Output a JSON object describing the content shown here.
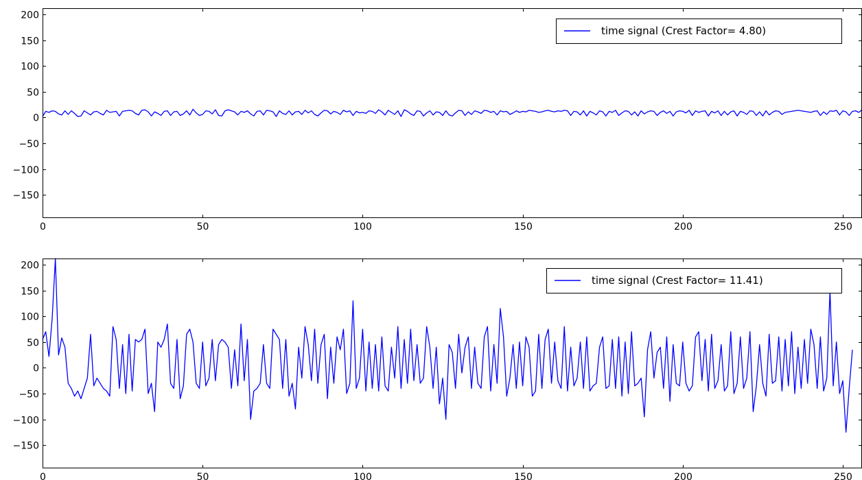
{
  "chart_data": [
    {
      "type": "line",
      "xlim": [
        0,
        256
      ],
      "ylim": [
        -195,
        212
      ],
      "xticks": [
        0,
        50,
        100,
        150,
        200,
        250
      ],
      "yticks": [
        -150,
        -100,
        -50,
        0,
        50,
        100,
        150,
        200
      ],
      "legend_position": "top-right",
      "grid": false,
      "series": [
        {
          "name": "time signal (Crest Factor= 4.80)",
          "color": "#0000ff",
          "values": [
            2,
            12,
            10,
            13,
            12,
            7,
            5,
            13,
            6,
            13,
            8,
            2,
            3,
            13,
            9,
            5,
            11,
            12,
            8,
            5,
            14,
            10,
            11,
            12,
            3,
            12,
            13,
            14,
            13,
            8,
            5,
            14,
            15,
            11,
            3,
            11,
            8,
            4,
            12,
            13,
            4,
            11,
            12,
            4,
            7,
            13,
            5,
            16,
            9,
            4,
            6,
            13,
            12,
            7,
            15,
            4,
            3,
            13,
            15,
            13,
            11,
            5,
            12,
            10,
            13,
            7,
            3,
            12,
            13,
            5,
            14,
            13,
            11,
            2,
            13,
            8,
            6,
            13,
            5,
            11,
            12,
            6,
            14,
            9,
            13,
            6,
            3,
            9,
            14,
            13,
            7,
            12,
            10,
            6,
            14,
            11,
            13,
            4,
            12,
            9,
            10,
            8,
            13,
            12,
            8,
            15,
            11,
            5,
            14,
            10,
            6,
            13,
            2,
            15,
            12,
            7,
            4,
            13,
            12,
            3,
            9,
            13,
            5,
            11,
            10,
            4,
            13,
            5,
            3,
            9,
            14,
            13,
            4,
            11,
            6,
            13,
            11,
            8,
            14,
            13,
            10,
            12,
            5,
            13,
            11,
            12,
            6,
            9,
            13,
            10,
            12,
            11,
            14,
            13,
            12,
            10,
            11,
            13,
            14,
            12,
            11,
            13,
            12,
            14,
            13,
            4,
            12,
            11,
            5,
            13,
            3,
            12,
            9,
            5,
            13,
            11,
            3,
            12,
            10,
            14,
            4,
            9,
            13,
            12,
            5,
            11,
            3,
            13,
            7,
            11,
            13,
            12,
            4,
            10,
            13,
            8,
            12,
            3,
            11,
            13,
            12,
            9,
            14,
            4,
            13,
            10,
            12,
            13,
            3,
            12,
            9,
            13,
            4,
            12,
            5,
            11,
            13,
            3,
            12,
            10,
            6,
            13,
            12,
            4,
            11,
            3,
            13,
            5,
            10,
            13,
            12,
            6,
            10,
            11,
            12,
            13,
            14,
            13,
            12,
            11,
            10,
            12,
            13,
            4,
            11,
            6,
            13,
            12,
            14,
            5,
            13,
            11,
            4,
            12,
            13,
            10,
            15,
            12,
            4,
            9,
            13,
            12,
            11,
            10,
            6
          ]
        }
      ]
    },
    {
      "type": "line",
      "xlim": [
        0,
        256
      ],
      "ylim": [
        -195,
        212
      ],
      "xticks": [
        0,
        50,
        100,
        150,
        200,
        250
      ],
      "yticks": [
        -150,
        -100,
        -50,
        0,
        50,
        100,
        150,
        200
      ],
      "legend_position": "top-right",
      "grid": false,
      "series": [
        {
          "name": "time signal (Crest Factor= 11.41)",
          "color": "#0000ff",
          "values": [
            55,
            70,
            22,
            95,
            212,
            25,
            58,
            40,
            -30,
            -40,
            -55,
            -45,
            -60,
            -40,
            -20,
            65,
            -35,
            -20,
            -30,
            -40,
            -45,
            -55,
            80,
            55,
            -40,
            45,
            -50,
            65,
            -45,
            55,
            50,
            55,
            75,
            -50,
            -30,
            -85,
            50,
            40,
            55,
            85,
            -30,
            -40,
            55,
            -60,
            -35,
            65,
            75,
            50,
            -30,
            -40,
            50,
            -35,
            -20,
            55,
            -25,
            45,
            55,
            50,
            40,
            -40,
            35,
            -35,
            85,
            -25,
            55,
            -100,
            -45,
            -40,
            -30,
            45,
            -30,
            -40,
            75,
            65,
            55,
            -40,
            55,
            -55,
            -30,
            -80,
            40,
            -20,
            80,
            45,
            -25,
            75,
            -30,
            45,
            65,
            -60,
            40,
            -30,
            60,
            35,
            75,
            -50,
            -30,
            130,
            -40,
            -20,
            75,
            -45,
            50,
            -40,
            45,
            -45,
            60,
            -35,
            -45,
            40,
            -20,
            80,
            -40,
            55,
            -30,
            75,
            -25,
            45,
            -30,
            -20,
            80,
            40,
            -40,
            40,
            -70,
            -20,
            -100,
            45,
            30,
            -40,
            65,
            -10,
            40,
            60,
            -40,
            40,
            -30,
            -40,
            60,
            80,
            -45,
            45,
            -30,
            115,
            60,
            -55,
            -20,
            45,
            -40,
            50,
            -35,
            60,
            40,
            -55,
            -45,
            65,
            -40,
            55,
            75,
            -30,
            50,
            -25,
            -40,
            80,
            -45,
            40,
            -35,
            -20,
            50,
            -40,
            60,
            -45,
            -35,
            -30,
            40,
            60,
            -40,
            -35,
            55,
            -40,
            60,
            -55,
            50,
            -50,
            70,
            -35,
            -30,
            -20,
            -95,
            35,
            70,
            -20,
            30,
            40,
            -40,
            60,
            -65,
            45,
            -30,
            -35,
            50,
            -30,
            -45,
            -35,
            60,
            70,
            -25,
            55,
            -45,
            65,
            -40,
            -25,
            45,
            -45,
            -35,
            70,
            -50,
            -30,
            60,
            -40,
            -20,
            70,
            -85,
            -35,
            45,
            -30,
            -55,
            65,
            -30,
            -25,
            60,
            -45,
            55,
            -35,
            70,
            -50,
            40,
            -40,
            55,
            -30,
            75,
            45,
            -40,
            60,
            -45,
            -20,
            150,
            -35,
            50,
            -50,
            -25,
            -125,
            -40,
            35
          ]
        }
      ]
    }
  ]
}
